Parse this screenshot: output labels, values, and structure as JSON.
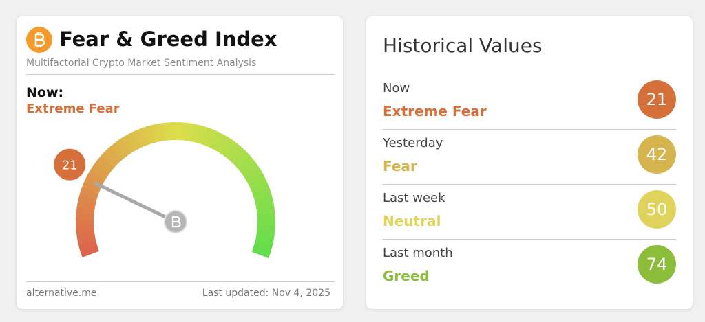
{
  "header": {
    "title": "Fear & Greed Index",
    "subtitle": "Multifactorial Crypto Market Sentiment Analysis"
  },
  "now": {
    "label": "Now:",
    "classification": "Extreme Fear",
    "value": 21,
    "color": "#d5703a"
  },
  "footer": {
    "source": "alternative.me",
    "updated": "Last updated: Nov 4, 2025"
  },
  "historical": {
    "title": "Historical Values",
    "rows": [
      {
        "label": "Now",
        "classification": "Extreme Fear",
        "value": 21,
        "color": "#d5703a"
      },
      {
        "label": "Yesterday",
        "classification": "Fear",
        "value": 42,
        "color": "#d6b54f"
      },
      {
        "label": "Last week",
        "classification": "Neutral",
        "value": 50,
        "color": "#dfd35b"
      },
      {
        "label": "Last month",
        "classification": "Greed",
        "value": 74,
        "color": "#8bbd3a"
      }
    ]
  }
}
